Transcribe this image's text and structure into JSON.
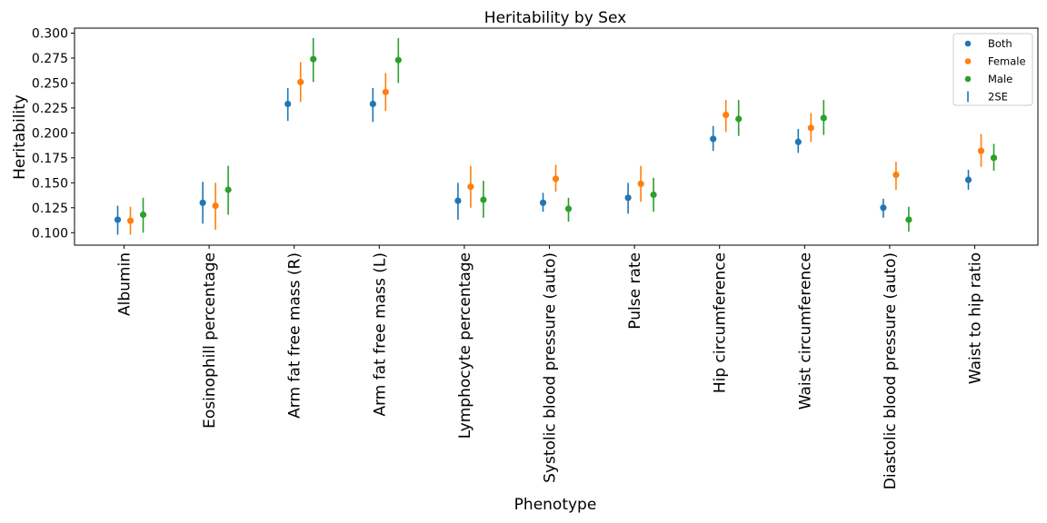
{
  "chart_data": {
    "type": "scatter",
    "title": "Heritability by Sex",
    "xlabel": "Phenotype",
    "ylabel": "Heritability",
    "ylim": [
      0.0875,
      0.305
    ],
    "yticks": [
      "0.100",
      "0.125",
      "0.150",
      "0.175",
      "0.200",
      "0.225",
      "0.250",
      "0.275",
      "0.300"
    ],
    "grid": false,
    "legend_position": "top-right",
    "categories": [
      "Albumin",
      "Eosinophill percentage",
      "Arm fat free mass (R)",
      "Arm fat free mass (L)",
      "Lymphocyte percentage",
      "Systolic blood pressure (auto)",
      "Pulse rate",
      "Hip circumference",
      "Waist circumference",
      "Diastolic blood pressure (auto)",
      "Waist to hip ratio"
    ],
    "series": [
      {
        "name": "Both",
        "color": "#1f77b4",
        "values": [
          0.113,
          0.13,
          0.229,
          0.229,
          0.132,
          0.13,
          0.135,
          0.194,
          0.191,
          0.125,
          0.153
        ],
        "lower": [
          0.098,
          0.109,
          0.212,
          0.211,
          0.113,
          0.121,
          0.119,
          0.182,
          0.18,
          0.115,
          0.143
        ],
        "upper": [
          0.127,
          0.151,
          0.245,
          0.245,
          0.15,
          0.14,
          0.15,
          0.207,
          0.204,
          0.134,
          0.163
        ]
      },
      {
        "name": "Female",
        "color": "#ff7f0e",
        "values": [
          0.112,
          0.127,
          0.251,
          0.241,
          0.146,
          0.154,
          0.149,
          0.218,
          0.205,
          0.158,
          0.182
        ],
        "lower": [
          0.098,
          0.103,
          0.231,
          0.222,
          0.125,
          0.141,
          0.131,
          0.201,
          0.191,
          0.143,
          0.166
        ],
        "upper": [
          0.126,
          0.15,
          0.271,
          0.26,
          0.167,
          0.168,
          0.167,
          0.233,
          0.22,
          0.171,
          0.199
        ]
      },
      {
        "name": "Male",
        "color": "#2ca02c",
        "values": [
          0.118,
          0.143,
          0.274,
          0.273,
          0.133,
          0.124,
          0.138,
          0.214,
          0.215,
          0.113,
          0.175
        ],
        "lower": [
          0.1,
          0.118,
          0.251,
          0.25,
          0.115,
          0.111,
          0.121,
          0.197,
          0.198,
          0.101,
          0.162
        ],
        "upper": [
          0.135,
          0.167,
          0.295,
          0.295,
          0.152,
          0.135,
          0.155,
          0.233,
          0.233,
          0.126,
          0.189
        ]
      }
    ],
    "error_legend_label": "2SE"
  }
}
